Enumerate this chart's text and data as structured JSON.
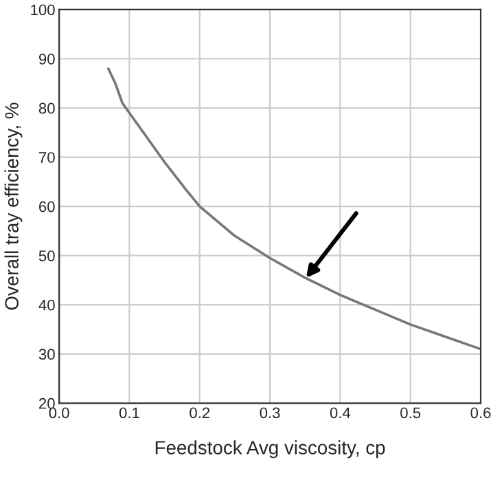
{
  "chart_data": {
    "type": "line",
    "xlabel": "Feedstock Avg viscosity, cp",
    "ylabel": "Overall tray efficiency, %",
    "x": [
      0.07,
      0.08,
      0.09,
      0.1,
      0.12,
      0.15,
      0.18,
      0.2,
      0.25,
      0.3,
      0.35,
      0.4,
      0.45,
      0.5,
      0.55,
      0.6
    ],
    "series": [
      {
        "color": "#777777",
        "values": [
          88,
          85,
          81,
          79,
          75,
          69,
          63.5,
          60,
          54,
          49.5,
          45.5,
          42,
          39,
          36,
          33.5,
          31
        ]
      }
    ],
    "xlim": [
      0.0,
      0.6
    ],
    "ylim": [
      20,
      100
    ],
    "xticks": [
      {
        "value": 0.0,
        "label": "0.0"
      },
      0.1,
      0.2,
      0.3,
      0.4,
      0.5,
      0.6
    ],
    "yticks": [
      20,
      30,
      40,
      50,
      60,
      70,
      80,
      90,
      100
    ],
    "grid": true,
    "line_style": "solid",
    "marker": "none"
  }
}
